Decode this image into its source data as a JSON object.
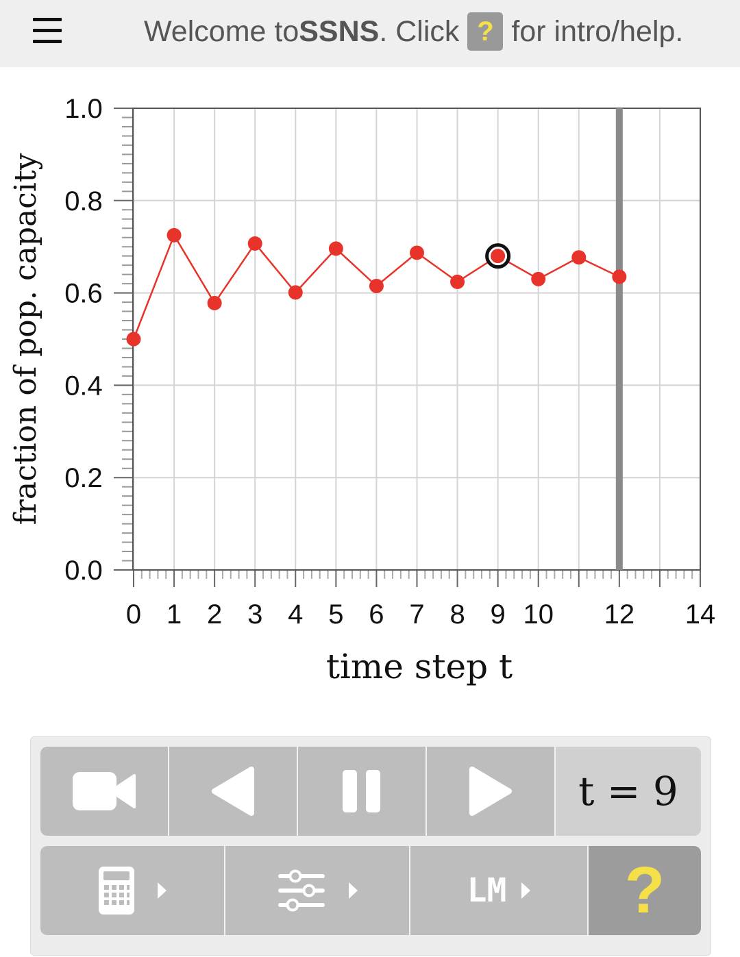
{
  "topbar": {
    "welcome_prefix": "Welcome to ",
    "app_name": "SSNS",
    "click_text": ". Click",
    "help_glyph": "?",
    "welcome_suffix": "for intro/help."
  },
  "chart_data": {
    "type": "line",
    "x": [
      0,
      1,
      2,
      3,
      4,
      5,
      6,
      7,
      8,
      9,
      10,
      11,
      12
    ],
    "series": [
      {
        "values": [
          0.5,
          0.725,
          0.578,
          0.707,
          0.601,
          0.696,
          0.615,
          0.687,
          0.624,
          0.68,
          0.63,
          0.677,
          0.635
        ],
        "color": "#e8332a"
      }
    ],
    "highlighted_x": 9,
    "current_marker_x": 12,
    "xlim": [
      0,
      14
    ],
    "ylim": [
      0,
      1
    ],
    "xticks": [
      "0",
      "1",
      "2",
      "3",
      "4",
      "5",
      "6",
      "7",
      "8",
      "9",
      "10",
      "12",
      "14"
    ],
    "yticks": [
      "0.0",
      "0.2",
      "0.4",
      "0.6",
      "0.8",
      "1.0"
    ],
    "xlabel": "time step t",
    "ylabel": "fraction of pop. capacity",
    "grid": true
  },
  "controls": {
    "time_label": "t = 9",
    "lm_label": "LM",
    "help_glyph": "?"
  },
  "icons": [
    "menu-icon",
    "video-camera-icon",
    "step-back-icon",
    "pause-icon",
    "play-icon",
    "calculator-icon",
    "sliders-icon",
    "help-icon"
  ],
  "colors": {
    "series": "#e8332a",
    "button": "#bdbdbd",
    "help_button": "#9c9c9c",
    "help_accent": "#f5e04a"
  }
}
